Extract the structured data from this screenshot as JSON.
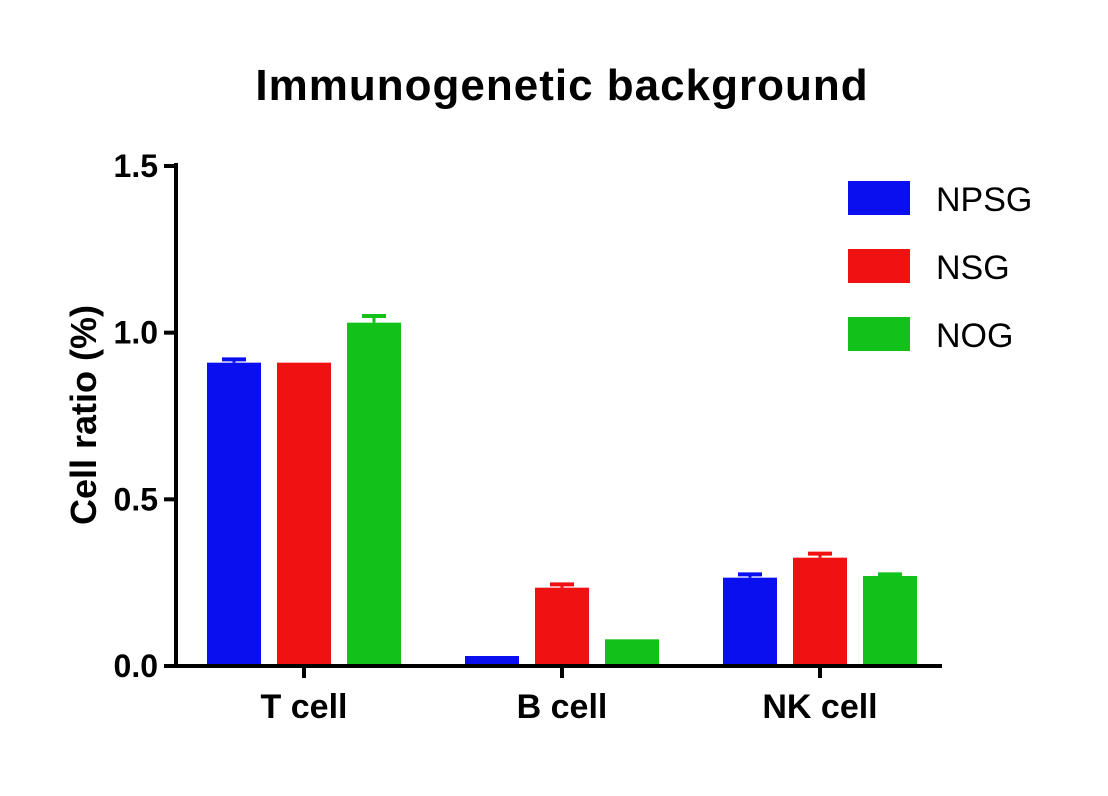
{
  "chart_data": {
    "type": "bar",
    "title": "Immunogenetic background",
    "xlabel": "",
    "ylabel": "Cell ratio (%)",
    "ylim": [
      0,
      1.5
    ],
    "yticks": [
      "0.0",
      "0.5",
      "1.0",
      "1.5"
    ],
    "categories": [
      "T cell",
      "B cell",
      "NK cell"
    ],
    "series": [
      {
        "name": "NPSG",
        "color": "#0a0ff0",
        "values": [
          0.91,
          0.03,
          0.265
        ],
        "errors": [
          0.01,
          0.0,
          0.01
        ]
      },
      {
        "name": "NSG",
        "color": "#f01212",
        "values": [
          0.91,
          0.235,
          0.325
        ],
        "errors": [
          0.0,
          0.01,
          0.012
        ]
      },
      {
        "name": "NOG",
        "color": "#12c21a",
        "values": [
          1.03,
          0.08,
          0.27
        ],
        "errors": [
          0.02,
          0.0,
          0.005
        ]
      }
    ],
    "legend_position": "top-right",
    "grid": false
  }
}
